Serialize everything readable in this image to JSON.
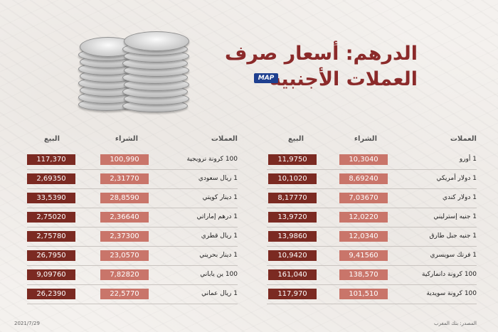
{
  "title": {
    "line1": "الدرهم: أسعار صرف",
    "line2": "العملات الأجنبية"
  },
  "badge": "MAP",
  "headers": {
    "currency": "العملات",
    "buy": "الشراء",
    "sell": "البيع"
  },
  "right_table": [
    {
      "name": "1 أورو",
      "buy": "10,3040",
      "sell": "11,9750"
    },
    {
      "name": "1 دولار أمريكي",
      "buy": "8,69240",
      "sell": "10,1020"
    },
    {
      "name": "1 دولار كندي",
      "buy": "7,03670",
      "sell": "8,17770"
    },
    {
      "name": "1 جنيه إسترليني",
      "buy": "12,0220",
      "sell": "13,9720"
    },
    {
      "name": "1 جنيه جبل طارق",
      "buy": "12,0340",
      "sell": "13,9860"
    },
    {
      "name": "1 فرنك سويسري",
      "buy": "9,41560",
      "sell": "10,9420"
    },
    {
      "name": "100 كرونة دانماركية",
      "buy": "138,570",
      "sell": "161,040"
    },
    {
      "name": "100 كرونة سويدية",
      "buy": "101,510",
      "sell": "117,970"
    }
  ],
  "left_table": [
    {
      "name": "100 كرونة نرويجية",
      "buy": "100,990",
      "sell": "117,370"
    },
    {
      "name": "1 ريال سعودي",
      "buy": "2,31770",
      "sell": "2,69350"
    },
    {
      "name": "1 دينار كويتي",
      "buy": "28,8590",
      "sell": "33,5390"
    },
    {
      "name": "1 درهم إماراتي",
      "buy": "2,36640",
      "sell": "2,75020"
    },
    {
      "name": "1 ريال قطري",
      "buy": "2,37300",
      "sell": "2,75780"
    },
    {
      "name": "1 دينار بحريني",
      "buy": "23,0570",
      "sell": "26,7950"
    },
    {
      "name": "100 ين ياباني",
      "buy": "7,82820",
      "sell": "9,09760"
    },
    {
      "name": "1 ريال عماني",
      "buy": "22,5770",
      "sell": "26,2390"
    }
  ],
  "footer": {
    "source": "المصدر: بنك المغرب",
    "date": "2021/7/29"
  }
}
